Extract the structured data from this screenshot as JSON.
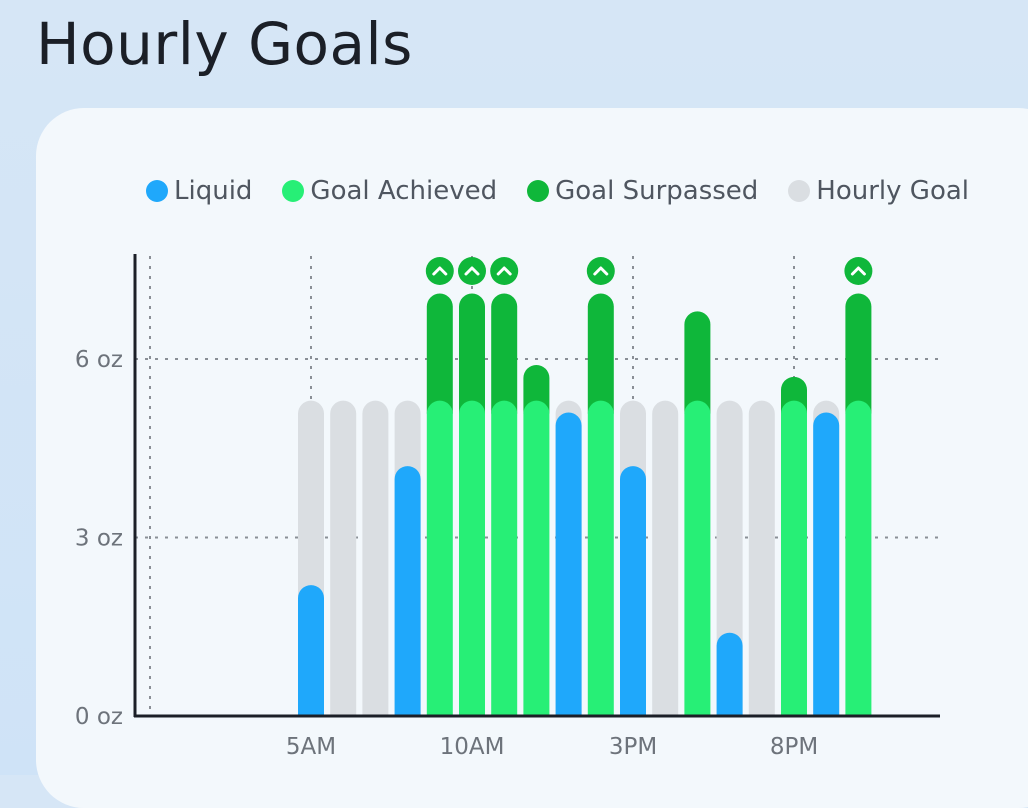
{
  "page": {
    "title": "Hourly Goals"
  },
  "legend": [
    {
      "label": "Liquid",
      "color": "#1fa8fb"
    },
    {
      "label": "Goal Achieved",
      "color": "#27ef76"
    },
    {
      "label": "Goal Surpassed",
      "color": "#0fb73a"
    },
    {
      "label": "Hourly Goal",
      "color": "#dadee2"
    }
  ],
  "chart_data": {
    "type": "bar",
    "title": "Hourly Goals",
    "xlabel": "",
    "ylabel": "",
    "ylim": [
      0,
      7
    ],
    "y_ticks": [
      "0 oz",
      "3 oz",
      "6 oz"
    ],
    "y_tick_values": [
      0,
      3,
      6
    ],
    "x_ticks": [
      "5AM",
      "10AM",
      "3PM",
      "8PM"
    ],
    "x_tick_hours": [
      5,
      10,
      15,
      20
    ],
    "hourly_goal": 5.3,
    "grid": true,
    "legend_position": "top",
    "colors": {
      "liquid": "#1fa8fb",
      "achieved": "#27ef76",
      "surpassed": "#0fb73a",
      "goal": "#dadee2",
      "icon": "#0fb73a"
    },
    "hours": [
      5,
      6,
      7,
      8,
      9,
      10,
      11,
      12,
      13,
      14,
      15,
      16,
      17,
      18,
      19,
      20,
      21,
      22
    ],
    "series": [
      {
        "name": "Liquid",
        "values": [
          2.2,
          0,
          0,
          4.2,
          7.1,
          7.1,
          7.1,
          5.9,
          5.1,
          7.1,
          4.2,
          0,
          6.8,
          1.4,
          0,
          5.7,
          5.1,
          7.1
        ]
      }
    ],
    "surpassed_icons": [
      9,
      10,
      11,
      14,
      22
    ]
  }
}
